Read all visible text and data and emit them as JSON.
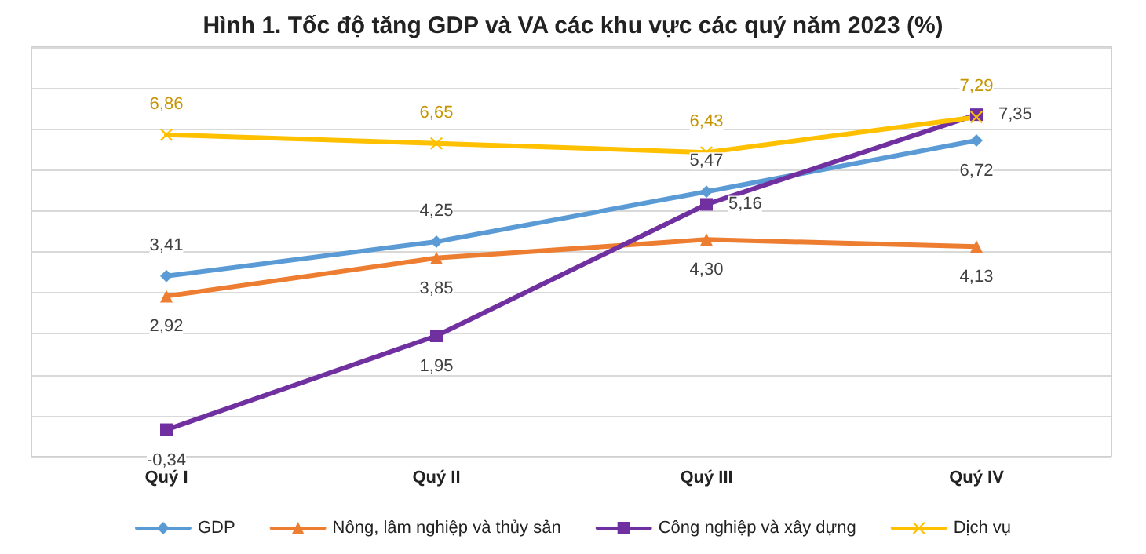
{
  "chart_data": {
    "type": "line",
    "title": "Hình 1. Tốc độ tăng GDP và VA các khu vực các quý năm 2023 (%)",
    "categories": [
      "Quý I",
      "Quý II",
      "Quý III",
      "Quý IV"
    ],
    "series": [
      {
        "name": "GDP",
        "color": "#5b9bd5",
        "marker": "diamond",
        "values": [
          3.41,
          4.25,
          5.47,
          6.72
        ],
        "value_labels": [
          "3,41",
          "4,25",
          "5,47",
          "6,72"
        ]
      },
      {
        "name": "Nông, lâm nghiệp và thủy sản",
        "color": "#ed7d31",
        "marker": "triangle",
        "values": [
          2.92,
          3.85,
          4.3,
          4.13
        ],
        "value_labels": [
          "2,92",
          "3,85",
          "4,30",
          "4,13"
        ]
      },
      {
        "name": "Công nghiệp và xây dựng",
        "color": "#7030a0",
        "marker": "square",
        "values": [
          -0.34,
          1.95,
          5.16,
          7.35
        ],
        "value_labels": [
          "-0,34",
          "1,95",
          "5,16",
          "7,35"
        ]
      },
      {
        "name": "Dịch vụ",
        "color": "#ffc000",
        "marker": "cross",
        "values": [
          6.86,
          6.65,
          6.43,
          7.29
        ],
        "value_labels": [
          "6,86",
          "6,65",
          "6,43",
          "7,29"
        ]
      }
    ],
    "ylim": [
      -1,
      9
    ],
    "yticks": [
      {
        "value": -1,
        "label": null
      },
      {
        "value": 0,
        "label": null
      },
      {
        "value": 1,
        "label": null
      },
      {
        "value": 2,
        "label": null
      },
      {
        "value": 3,
        "label": null
      },
      {
        "value": 4,
        "label": null
      },
      {
        "value": 5,
        "label": null
      },
      {
        "value": 6,
        "label": null
      },
      {
        "value": 7,
        "label": null
      },
      {
        "value": 8,
        "label": null
      },
      {
        "value": 9,
        "label": null
      }
    ],
    "tick_labels": "x",
    "grid": "y",
    "legend": "bottom"
  }
}
